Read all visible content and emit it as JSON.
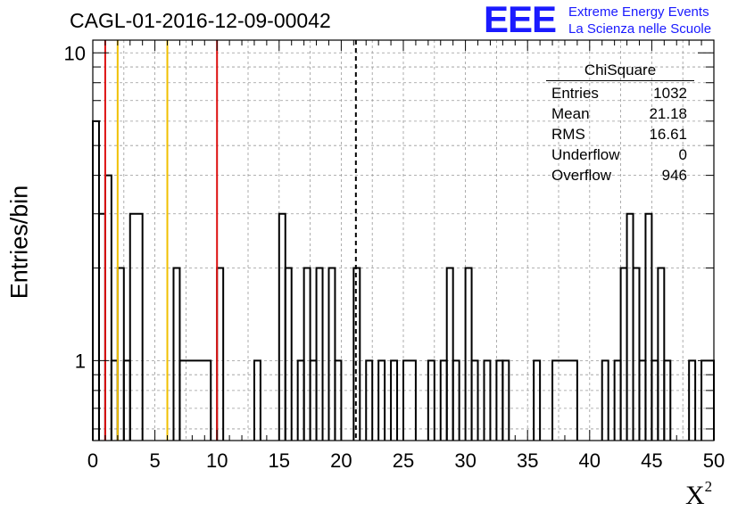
{
  "header": {
    "run_title": "CAGL-01-2016-12-09-00042",
    "logo_mark": "EEE",
    "logo_line1": "Extreme Energy Events",
    "logo_line2": "La Scienza nelle Scuole",
    "logo_color": "#1a1aff"
  },
  "stats_box": {
    "title": "ChiSquare",
    "rows": [
      {
        "label": "Entries",
        "value": "1032"
      },
      {
        "label": "Mean",
        "value": "21.18"
      },
      {
        "label": "RMS",
        "value": "16.61"
      },
      {
        "label": "Underflow",
        "value": "0"
      },
      {
        "label": "Overflow",
        "value": "946"
      }
    ]
  },
  "chart_data": {
    "type": "bar",
    "style": "step-histogram",
    "xlabel": "X²",
    "xlabel_main": "X",
    "xlabel_sup": "2",
    "ylabel": "Entries/bin",
    "xlim": [
      0,
      50
    ],
    "ylim": [
      0.55,
      11
    ],
    "y_scale": "log",
    "grid": true,
    "x_ticks": [
      0,
      5,
      10,
      15,
      20,
      25,
      30,
      35,
      40,
      45,
      50
    ],
    "x_tick_labels": [
      "0",
      "5",
      "10",
      "15",
      "20",
      "25",
      "30",
      "35",
      "40",
      "45",
      "50"
    ],
    "y_ticks": [
      1,
      10
    ],
    "y_tick_labels": [
      "1",
      "10"
    ],
    "bin_width": 0.5,
    "bins": [
      [
        0,
        0.5,
        6
      ],
      [
        0.5,
        1,
        3
      ],
      [
        1,
        1.5,
        4
      ],
      [
        1.5,
        2,
        1
      ],
      [
        2,
        2.5,
        2
      ],
      [
        2.5,
        3,
        1
      ],
      [
        3,
        4,
        3
      ],
      [
        6.5,
        7,
        2
      ],
      [
        7,
        9.5,
        1
      ],
      [
        10,
        10.5,
        2
      ],
      [
        13,
        13.5,
        1
      ],
      [
        15,
        15.5,
        3
      ],
      [
        15.5,
        16,
        2
      ],
      [
        16.5,
        17,
        1
      ],
      [
        17,
        17.5,
        2
      ],
      [
        17.5,
        18,
        1
      ],
      [
        18,
        18.5,
        2
      ],
      [
        19,
        19.5,
        2
      ],
      [
        19.5,
        20,
        1
      ],
      [
        21,
        21.5,
        2
      ],
      [
        22,
        22.5,
        1
      ],
      [
        23,
        23.5,
        1
      ],
      [
        24,
        24.5,
        1
      ],
      [
        25,
        26,
        1
      ],
      [
        27,
        27.5,
        1
      ],
      [
        28,
        28.5,
        1
      ],
      [
        28.5,
        29,
        2
      ],
      [
        29,
        29.5,
        1
      ],
      [
        30,
        30.5,
        2
      ],
      [
        30.5,
        31,
        1
      ],
      [
        31.5,
        32,
        1
      ],
      [
        32.5,
        33,
        1
      ],
      [
        33,
        33.5,
        1
      ],
      [
        35.5,
        36,
        1
      ],
      [
        37,
        39,
        1
      ],
      [
        41,
        41.5,
        1
      ],
      [
        42,
        42.5,
        1
      ],
      [
        42.5,
        43,
        2
      ],
      [
        43,
        43.5,
        3
      ],
      [
        43.5,
        44,
        2
      ],
      [
        44,
        44.5,
        1
      ],
      [
        44.5,
        45,
        3
      ],
      [
        45,
        45.5,
        1
      ],
      [
        45.5,
        46,
        2
      ],
      [
        46,
        46.5,
        1
      ],
      [
        48,
        48.5,
        1
      ],
      [
        49,
        50,
        1
      ]
    ],
    "reference_lines": [
      {
        "x": 1,
        "color": "#dd1111"
      },
      {
        "x": 2,
        "color": "#f0c000"
      },
      {
        "x": 6,
        "color": "#f0c000"
      },
      {
        "x": 10,
        "color": "#dd1111"
      },
      {
        "x": 21.18,
        "color": "#000000",
        "dashed": true
      }
    ]
  }
}
